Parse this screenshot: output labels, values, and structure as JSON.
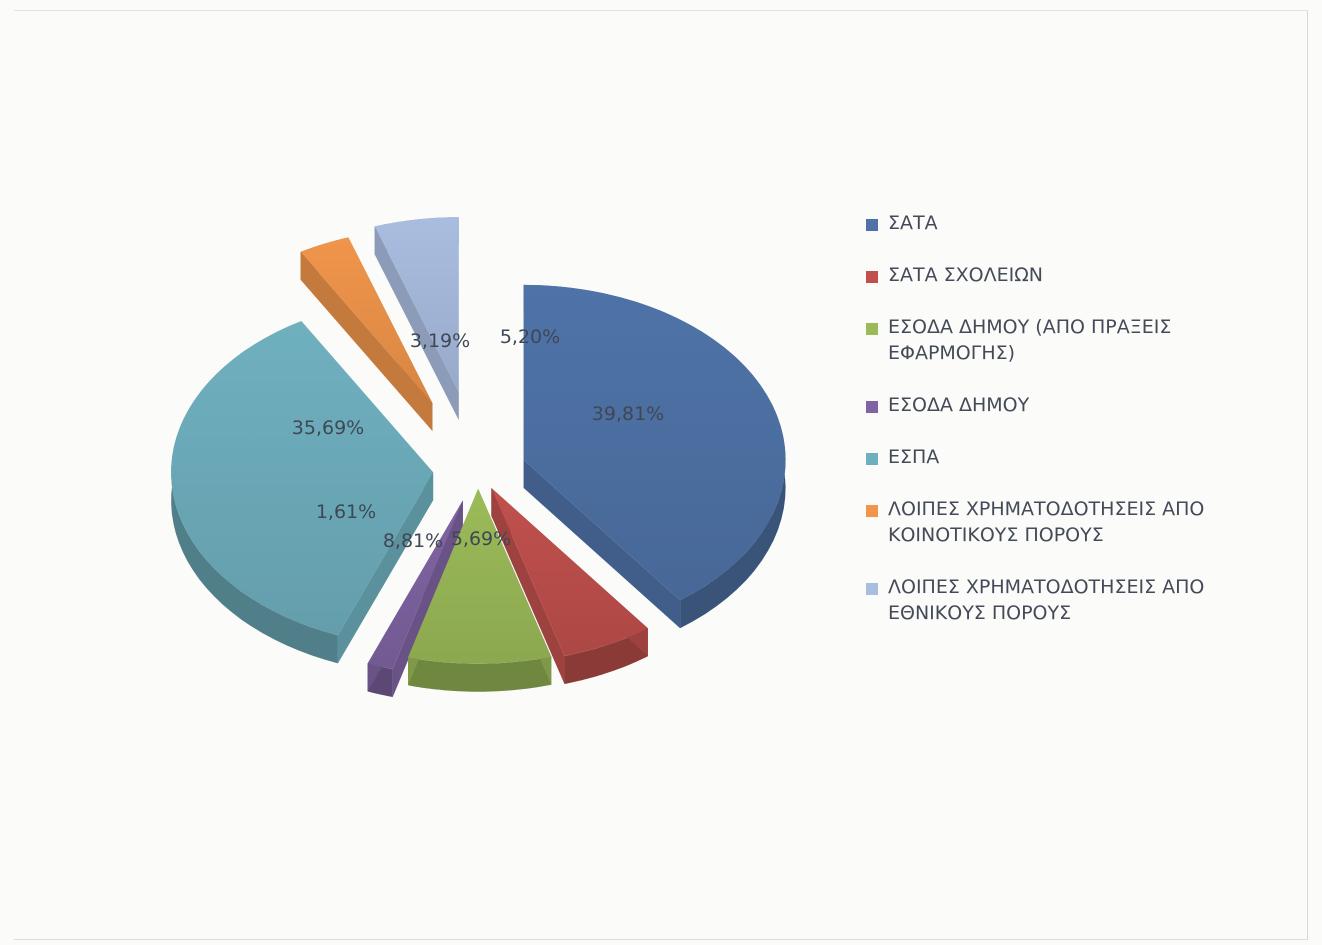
{
  "chart_data": {
    "type": "pie",
    "title": "",
    "exploded": true,
    "three_d": true,
    "legend_position": "right",
    "slices": [
      {
        "name": "ΣΑΤΑ",
        "value": 39.81,
        "label": "39,81%",
        "color": "#4f73a8"
      },
      {
        "name": "ΣΑΤΑ ΣΧΟΛΕΙΩΝ",
        "value": 5.69,
        "label": "5,69%",
        "color": "#c0504d"
      },
      {
        "name": "ΕΣΟΔΑ ΔΗΜΟΥ (ΑΠΟ ΠΡΑΞΕΙΣ ΕΦΑΡΜΟΓΗΣ)",
        "value": 8.81,
        "label": "8,81%",
        "color": "#9bbb59"
      },
      {
        "name": "ΕΣΟΔΑ ΔΗΜΟΥ",
        "value": 1.61,
        "label": "1,61%",
        "color": "#8064a2"
      },
      {
        "name": "ΕΣΠΑ",
        "value": 35.69,
        "label": "35,69%",
        "color": "#6fb0bf"
      },
      {
        "name": "ΛΟΙΠΕΣ ΧΡΗΜΑΤΟΔΟΤΗΣΕΙΣ ΑΠΟ ΚΟΙΝΟΤΙΚΟΥΣ ΠΟΡΟΥΣ",
        "value": 3.19,
        "label": "3,19%",
        "color": "#f0954b"
      },
      {
        "name": "ΛΟΙΠΕΣ ΧΡΗΜΑΤΟΔΟΤΗΣΕΙΣ ΑΠΟ ΕΘΝΙΚΟΥΣ ΠΟΡΟΥΣ",
        "value": 5.2,
        "label": "5,20%",
        "color": "#a9bde0"
      }
    ]
  },
  "legend": {
    "items": [
      {
        "label": "ΣΑΤΑ",
        "color": "#4f73a8"
      },
      {
        "label": "ΣΑΤΑ ΣΧΟΛΕΙΩΝ",
        "color": "#c0504d"
      },
      {
        "label": "ΕΣΟΔΑ ΔΗΜΟΥ (ΑΠΟ ΠΡΑΞΕΙΣ ΕΦΑΡΜΟΓΗΣ)",
        "color": "#9bbb59"
      },
      {
        "label": "ΕΣΟΔΑ ΔΗΜΟΥ",
        "color": "#8064a2"
      },
      {
        "label": "ΕΣΠΑ",
        "color": "#6fb0bf"
      },
      {
        "label": "ΛΟΙΠΕΣ ΧΡΗΜΑΤΟΔΟΤΗΣΕΙΣ ΑΠΟ ΚΟΙΝΟΤΙΚΟΥΣ ΠΟΡΟΥΣ",
        "color": "#f0954b"
      },
      {
        "label": "ΛΟΙΠΕΣ ΧΡΗΜΑΤΟΔΟΤΗΣΕΙΣ ΑΠΟ ΕΘΝΙΚΟΥΣ ΠΟΡΟΥΣ",
        "color": "#a9bde0"
      }
    ]
  }
}
